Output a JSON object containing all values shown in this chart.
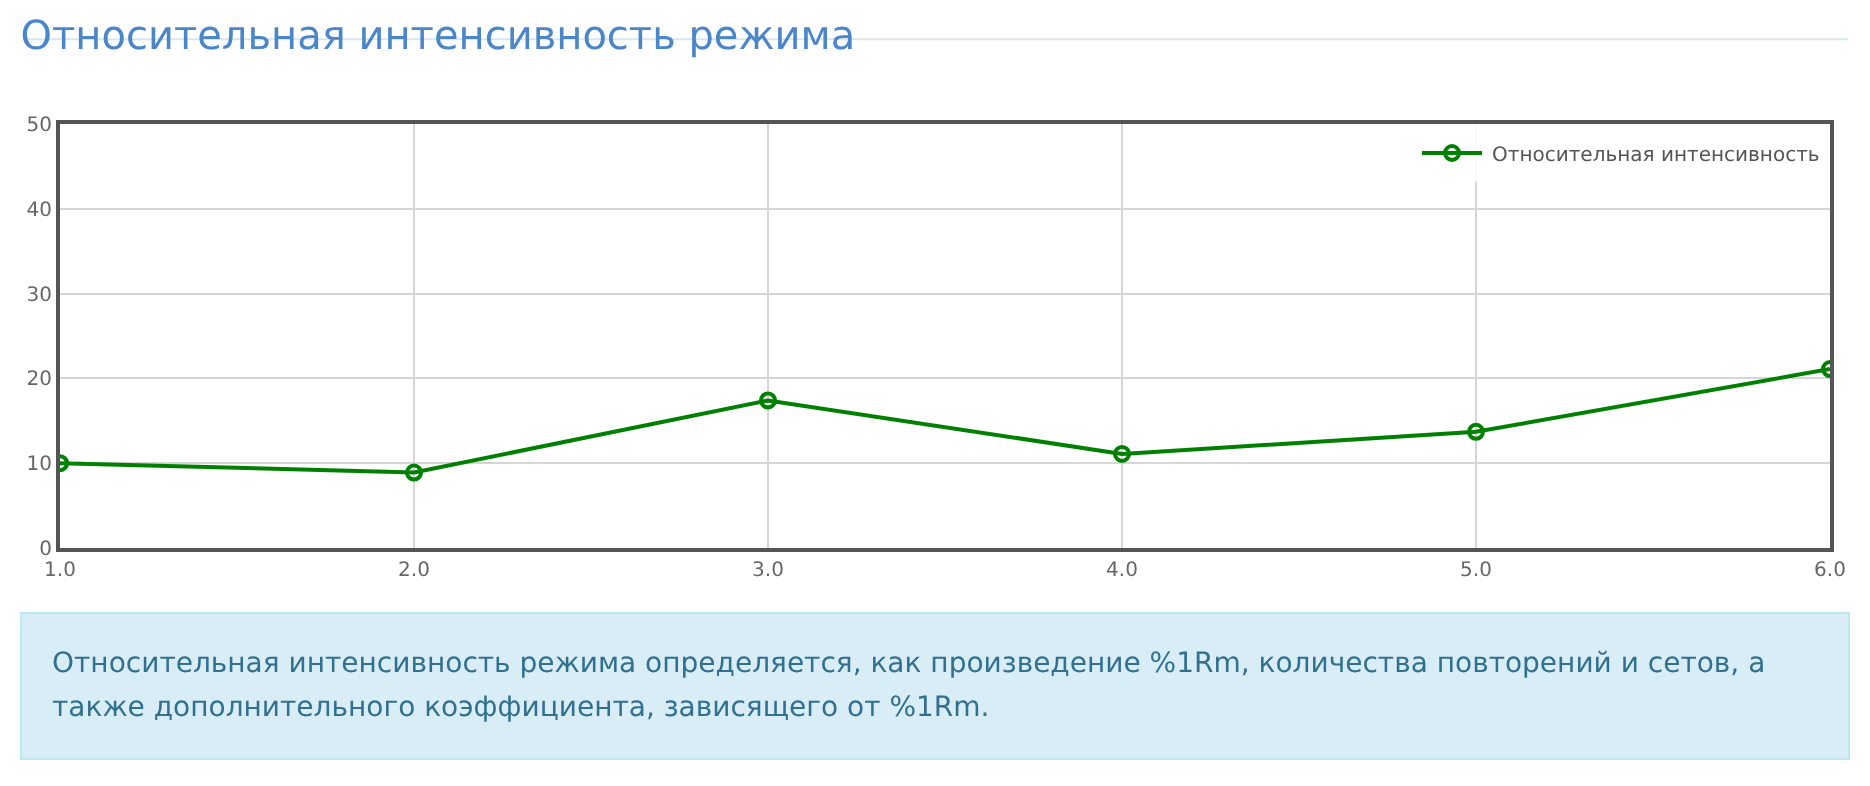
{
  "chart_data": {
    "type": "line",
    "title": "Относительная интенсивность режима",
    "x": [
      1,
      2,
      3,
      4,
      5,
      6
    ],
    "series": [
      {
        "name": "Относительная интенсивность",
        "color": "#008000",
        "values": [
          10.0,
          8.9,
          17.4,
          11.1,
          13.7,
          21.1
        ]
      }
    ],
    "xlim": [
      1,
      6
    ],
    "xticks": [
      {
        "value": 1,
        "label": "1.0"
      },
      {
        "value": 2,
        "label": "2.0"
      },
      {
        "value": 3,
        "label": "3.0"
      },
      {
        "value": 4,
        "label": "4.0"
      },
      {
        "value": 5,
        "label": "5.0"
      },
      {
        "value": 6,
        "label": "6.0"
      }
    ],
    "ylim": [
      0,
      50
    ],
    "yticks": [
      0,
      10,
      20,
      30,
      40,
      50
    ],
    "grid": true,
    "legend": "top right",
    "marker": "circle",
    "line_style": "solid",
    "annotations": [
      "Относительная интенсивность режима определяется, как произведение %1Rm, количества повторений и сетов, а также дополнительного коэффициента, зависящего от %1Rm."
    ]
  }
}
